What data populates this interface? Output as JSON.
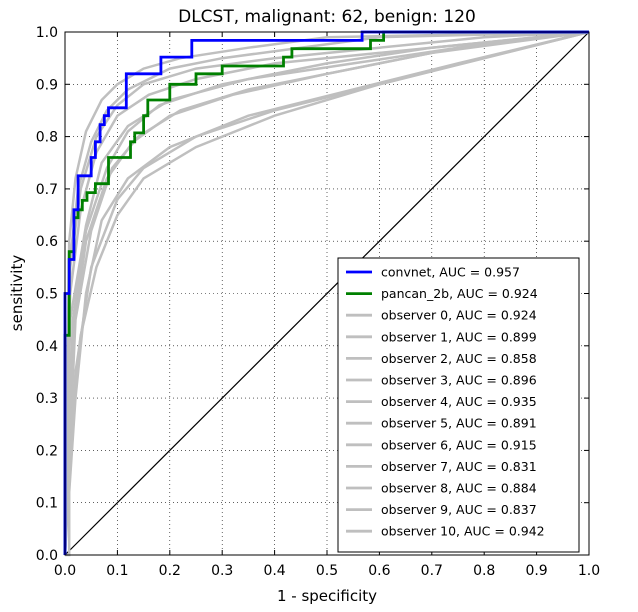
{
  "chart_data": {
    "type": "line",
    "title": "DLCST, malignant: 62, benign: 120",
    "xlabel": "1 - specificity",
    "ylabel": "sensitivity",
    "xlim": [
      0.0,
      1.0
    ],
    "ylim": [
      0.0,
      1.0
    ],
    "xticks": [
      "0.0",
      "0.1",
      "0.2",
      "0.3",
      "0.4",
      "0.5",
      "0.6",
      "0.7",
      "0.8",
      "0.9",
      "1.0"
    ],
    "yticks": [
      "0.0",
      "0.1",
      "0.2",
      "0.3",
      "0.4",
      "0.5",
      "0.6",
      "0.7",
      "0.8",
      "0.9",
      "1.0"
    ],
    "grid": true,
    "legend_position": "lower-right",
    "diagonal": {
      "x": [
        0,
        1
      ],
      "y": [
        0,
        1
      ],
      "color": "#000000"
    },
    "series": [
      {
        "name": "convnet, AUC = 0.957",
        "color": "#0000ff",
        "x": [
          0,
          0,
          0.008,
          0.008,
          0.017,
          0.017,
          0.025,
          0.025,
          0.05,
          0.05,
          0.058,
          0.058,
          0.067,
          0.067,
          0.075,
          0.075,
          0.083,
          0.083,
          0.092,
          0.092,
          0.117,
          0.117,
          0.183,
          0.183,
          0.242,
          0.242,
          0.567,
          0.567,
          1.0
        ],
        "y": [
          0,
          0.5,
          0.5,
          0.565,
          0.565,
          0.66,
          0.66,
          0.725,
          0.725,
          0.76,
          0.76,
          0.79,
          0.79,
          0.823,
          0.823,
          0.84,
          0.84,
          0.855,
          0.855,
          0.855,
          0.855,
          0.92,
          0.92,
          0.952,
          0.952,
          0.984,
          0.984,
          1.0,
          1.0
        ]
      },
      {
        "name": "pancan_2b, AUC = 0.924",
        "color": "#008000",
        "x": [
          0,
          0,
          0.008,
          0.008,
          0.017,
          0.017,
          0.025,
          0.025,
          0.033,
          0.033,
          0.042,
          0.042,
          0.058,
          0.058,
          0.075,
          0.075,
          0.083,
          0.083,
          0.108,
          0.108,
          0.125,
          0.125,
          0.133,
          0.133,
          0.15,
          0.15,
          0.158,
          0.158,
          0.2,
          0.2,
          0.25,
          0.25,
          0.3,
          0.3,
          0.417,
          0.417,
          0.433,
          0.433,
          0.583,
          0.583,
          0.608,
          0.608,
          1.0
        ],
        "y": [
          0,
          0.42,
          0.42,
          0.58,
          0.58,
          0.645,
          0.645,
          0.66,
          0.66,
          0.678,
          0.678,
          0.693,
          0.693,
          0.71,
          0.71,
          0.71,
          0.71,
          0.76,
          0.76,
          0.76,
          0.76,
          0.79,
          0.79,
          0.807,
          0.807,
          0.84,
          0.84,
          0.87,
          0.87,
          0.9,
          0.9,
          0.92,
          0.92,
          0.935,
          0.935,
          0.952,
          0.952,
          0.968,
          0.968,
          0.984,
          0.984,
          1.0,
          1.0
        ]
      },
      {
        "name": "observer 0, AUC = 0.924",
        "color": "#bfbfbf",
        "x": [
          0,
          0.01,
          0.03,
          0.06,
          0.1,
          0.15,
          0.25,
          0.4,
          0.6,
          0.8,
          1.0
        ],
        "y": [
          0,
          0.55,
          0.7,
          0.8,
          0.86,
          0.9,
          0.93,
          0.95,
          0.97,
          0.99,
          1.0
        ]
      },
      {
        "name": "observer 1, AUC = 0.899",
        "color": "#bfbfbf",
        "x": [
          0,
          0.015,
          0.04,
          0.08,
          0.12,
          0.18,
          0.3,
          0.5,
          0.7,
          1.0
        ],
        "y": [
          0,
          0.45,
          0.62,
          0.74,
          0.81,
          0.86,
          0.9,
          0.94,
          0.97,
          1.0
        ]
      },
      {
        "name": "observer 2, AUC = 0.858",
        "color": "#bfbfbf",
        "x": [
          0,
          0.02,
          0.05,
          0.1,
          0.15,
          0.25,
          0.4,
          0.6,
          1.0
        ],
        "y": [
          0,
          0.35,
          0.55,
          0.68,
          0.74,
          0.8,
          0.85,
          0.9,
          1.0
        ]
      },
      {
        "name": "observer 3, AUC = 0.896",
        "color": "#bfbfbf",
        "x": [
          0,
          0.01,
          0.04,
          0.07,
          0.12,
          0.2,
          0.35,
          0.55,
          0.75,
          1.0
        ],
        "y": [
          0,
          0.45,
          0.63,
          0.75,
          0.82,
          0.87,
          0.91,
          0.94,
          0.97,
          1.0
        ]
      },
      {
        "name": "observer 4, AUC = 0.935",
        "color": "#bfbfbf",
        "x": [
          0,
          0.008,
          0.025,
          0.05,
          0.08,
          0.12,
          0.2,
          0.3,
          0.45,
          0.6,
          1.0
        ],
        "y": [
          0,
          0.55,
          0.7,
          0.79,
          0.85,
          0.89,
          0.93,
          0.95,
          0.97,
          0.99,
          1.0
        ]
      },
      {
        "name": "observer 5, AUC = 0.891",
        "color": "#bfbfbf",
        "x": [
          0,
          0.02,
          0.05,
          0.09,
          0.14,
          0.22,
          0.35,
          0.55,
          0.75,
          1.0
        ],
        "y": [
          0,
          0.45,
          0.62,
          0.74,
          0.8,
          0.85,
          0.89,
          0.93,
          0.97,
          1.0
        ]
      },
      {
        "name": "observer 6, AUC = 0.915",
        "color": "#bfbfbf",
        "x": [
          0,
          0.01,
          0.03,
          0.06,
          0.1,
          0.16,
          0.25,
          0.4,
          0.6,
          0.8,
          1.0
        ],
        "y": [
          0,
          0.5,
          0.66,
          0.77,
          0.84,
          0.88,
          0.91,
          0.94,
          0.96,
          0.98,
          1.0
        ]
      },
      {
        "name": "observer 7, AUC = 0.831",
        "color": "#bfbfbf",
        "x": [
          0,
          0.008,
          0.008,
          0.02,
          0.04,
          0.07,
          0.12,
          0.2,
          0.35,
          0.55,
          0.75,
          1.0
        ],
        "y": [
          0,
          0.0,
          0.12,
          0.3,
          0.5,
          0.64,
          0.72,
          0.78,
          0.84,
          0.89,
          0.94,
          1.0
        ]
      },
      {
        "name": "observer 8, AUC = 0.884",
        "color": "#bfbfbf",
        "x": [
          0,
          0.015,
          0.04,
          0.08,
          0.13,
          0.2,
          0.32,
          0.5,
          0.7,
          1.0
        ],
        "y": [
          0,
          0.42,
          0.6,
          0.72,
          0.79,
          0.84,
          0.88,
          0.92,
          0.96,
          1.0
        ]
      },
      {
        "name": "observer 9, AUC = 0.837",
        "color": "#bfbfbf",
        "x": [
          0,
          0.01,
          0.03,
          0.06,
          0.1,
          0.15,
          0.25,
          0.4,
          0.6,
          0.8,
          1.0
        ],
        "y": [
          0,
          0.25,
          0.42,
          0.55,
          0.65,
          0.72,
          0.78,
          0.84,
          0.9,
          0.95,
          1.0
        ]
      },
      {
        "name": "observer 10, AUC = 0.942",
        "color": "#bfbfbf",
        "x": [
          0,
          0.008,
          0.02,
          0.04,
          0.07,
          0.1,
          0.15,
          0.22,
          0.35,
          0.5,
          1.0
        ],
        "y": [
          0,
          0.6,
          0.72,
          0.81,
          0.87,
          0.9,
          0.93,
          0.95,
          0.97,
          0.99,
          1.0
        ]
      }
    ]
  }
}
